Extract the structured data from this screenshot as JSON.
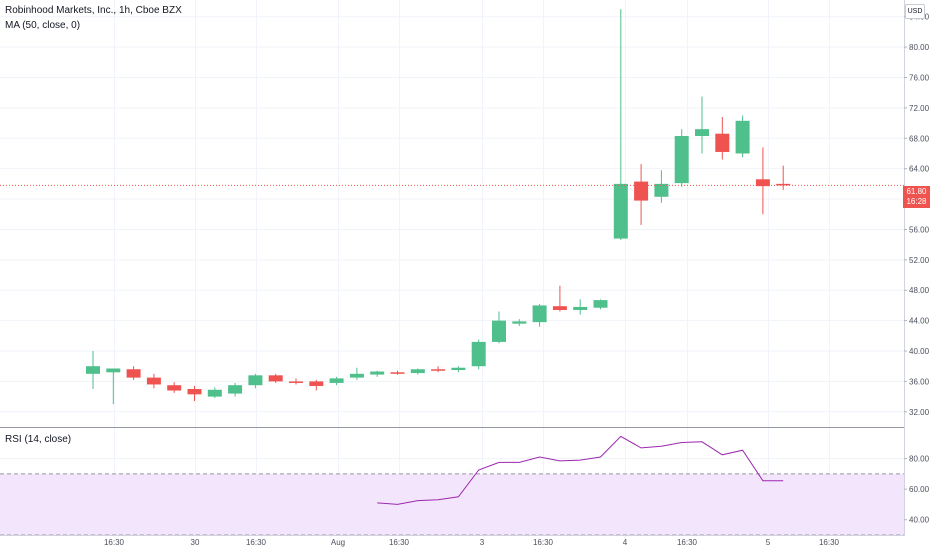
{
  "legend": {
    "title": "Robinhood Markets, Inc., 1h, Cboe BZX",
    "ma": "MA (50, close, 0)",
    "rsi": "RSI (14, close)"
  },
  "price_axis": {
    "currency": "USD"
  },
  "last_price": {
    "value": "61.80",
    "countdown": "16:28"
  },
  "colors": {
    "up": "#4fbf8c",
    "down": "#ef5350",
    "rsi_line": "#9c27b0",
    "rsi_band": "#f3e5fb"
  },
  "chart_data": [
    {
      "type": "candlestick",
      "title": "Robinhood Markets, Inc., 1h, Cboe BZX",
      "x_tick_labels": [
        "16:30",
        "30",
        "16:30",
        "Aug",
        "16:30",
        "3",
        "16:30",
        "4",
        "16:30",
        "5",
        "16:30"
      ],
      "y_tick_labels": [
        "32.00",
        "36.00",
        "40.00",
        "44.00",
        "48.00",
        "52.00",
        "56.00",
        "60.00",
        "64.00",
        "68.00",
        "72.00",
        "76.00",
        "80.00",
        "84.00"
      ],
      "ylim": [
        30.0,
        86.2
      ],
      "grid": true,
      "candles": [
        {
          "o": 37.0,
          "h": 40.0,
          "l": 35.0,
          "c": 38.0
        },
        {
          "o": 37.2,
          "h": 37.7,
          "l": 33.0,
          "c": 37.7
        },
        {
          "o": 37.6,
          "h": 38.0,
          "l": 36.2,
          "c": 36.5
        },
        {
          "o": 36.5,
          "h": 37.0,
          "l": 35.1,
          "c": 35.6
        },
        {
          "o": 35.5,
          "h": 35.9,
          "l": 34.5,
          "c": 34.8
        },
        {
          "o": 35.0,
          "h": 35.4,
          "l": 33.4,
          "c": 34.3
        },
        {
          "o": 34.0,
          "h": 35.2,
          "l": 33.8,
          "c": 34.9
        },
        {
          "o": 34.4,
          "h": 35.8,
          "l": 34.0,
          "c": 35.5
        },
        {
          "o": 35.5,
          "h": 37.0,
          "l": 35.1,
          "c": 36.8
        },
        {
          "o": 36.8,
          "h": 37.0,
          "l": 35.8,
          "c": 36.0
        },
        {
          "o": 36.0,
          "h": 36.4,
          "l": 35.6,
          "c": 35.8
        },
        {
          "o": 36.0,
          "h": 36.2,
          "l": 34.8,
          "c": 35.4
        },
        {
          "o": 35.8,
          "h": 36.6,
          "l": 35.5,
          "c": 36.4
        },
        {
          "o": 36.5,
          "h": 37.8,
          "l": 36.2,
          "c": 37.0
        },
        {
          "o": 36.9,
          "h": 37.4,
          "l": 36.6,
          "c": 37.3
        },
        {
          "o": 37.2,
          "h": 37.4,
          "l": 36.9,
          "c": 37.0
        },
        {
          "o": 37.1,
          "h": 37.7,
          "l": 36.9,
          "c": 37.6
        },
        {
          "o": 37.6,
          "h": 38.0,
          "l": 37.2,
          "c": 37.4
        },
        {
          "o": 37.5,
          "h": 38.0,
          "l": 37.2,
          "c": 37.8
        },
        {
          "o": 38.0,
          "h": 41.5,
          "l": 37.6,
          "c": 41.2
        },
        {
          "o": 41.2,
          "h": 45.2,
          "l": 41.0,
          "c": 44.0
        },
        {
          "o": 43.6,
          "h": 44.2,
          "l": 43.3,
          "c": 43.9
        },
        {
          "o": 43.8,
          "h": 46.2,
          "l": 43.2,
          "c": 46.0
        },
        {
          "o": 45.9,
          "h": 48.6,
          "l": 45.2,
          "c": 45.4
        },
        {
          "o": 45.4,
          "h": 46.8,
          "l": 44.8,
          "c": 45.8
        },
        {
          "o": 45.7,
          "h": 46.8,
          "l": 45.5,
          "c": 46.7
        },
        {
          "o": 54.8,
          "h": 85.0,
          "l": 54.6,
          "c": 62.0
        },
        {
          "o": 62.3,
          "h": 64.6,
          "l": 56.6,
          "c": 59.8
        },
        {
          "o": 60.3,
          "h": 63.8,
          "l": 59.5,
          "c": 62.0
        },
        {
          "o": 62.1,
          "h": 69.2,
          "l": 61.6,
          "c": 68.3
        },
        {
          "o": 68.3,
          "h": 73.5,
          "l": 66.0,
          "c": 69.2
        },
        {
          "o": 68.6,
          "h": 70.8,
          "l": 65.2,
          "c": 66.2
        },
        {
          "o": 66.0,
          "h": 71.0,
          "l": 65.5,
          "c": 70.3
        },
        {
          "o": 62.6,
          "h": 66.8,
          "l": 58.0,
          "c": 61.7
        },
        {
          "o": 62.0,
          "h": 64.4,
          "l": 61.2,
          "c": 61.8
        }
      ]
    },
    {
      "type": "line",
      "title": "RSI (14, close)",
      "y_tick_labels": [
        "40.00",
        "60.00",
        "80.00"
      ],
      "ylim": [
        30,
        100
      ],
      "band": [
        30,
        70
      ],
      "x": [
        14,
        15,
        16,
        17,
        18,
        19,
        20,
        21,
        22,
        23,
        24,
        25,
        26,
        27,
        28,
        29,
        30,
        31,
        32,
        33,
        34
      ],
      "values": [
        51.0,
        50.0,
        52.5,
        53.0,
        55.0,
        72.5,
        77.5,
        77.5,
        81.0,
        78.5,
        79.0,
        81.0,
        94.5,
        87.0,
        88.0,
        90.5,
        91.0,
        82.5,
        85.5,
        65.5,
        65.5
      ]
    }
  ]
}
